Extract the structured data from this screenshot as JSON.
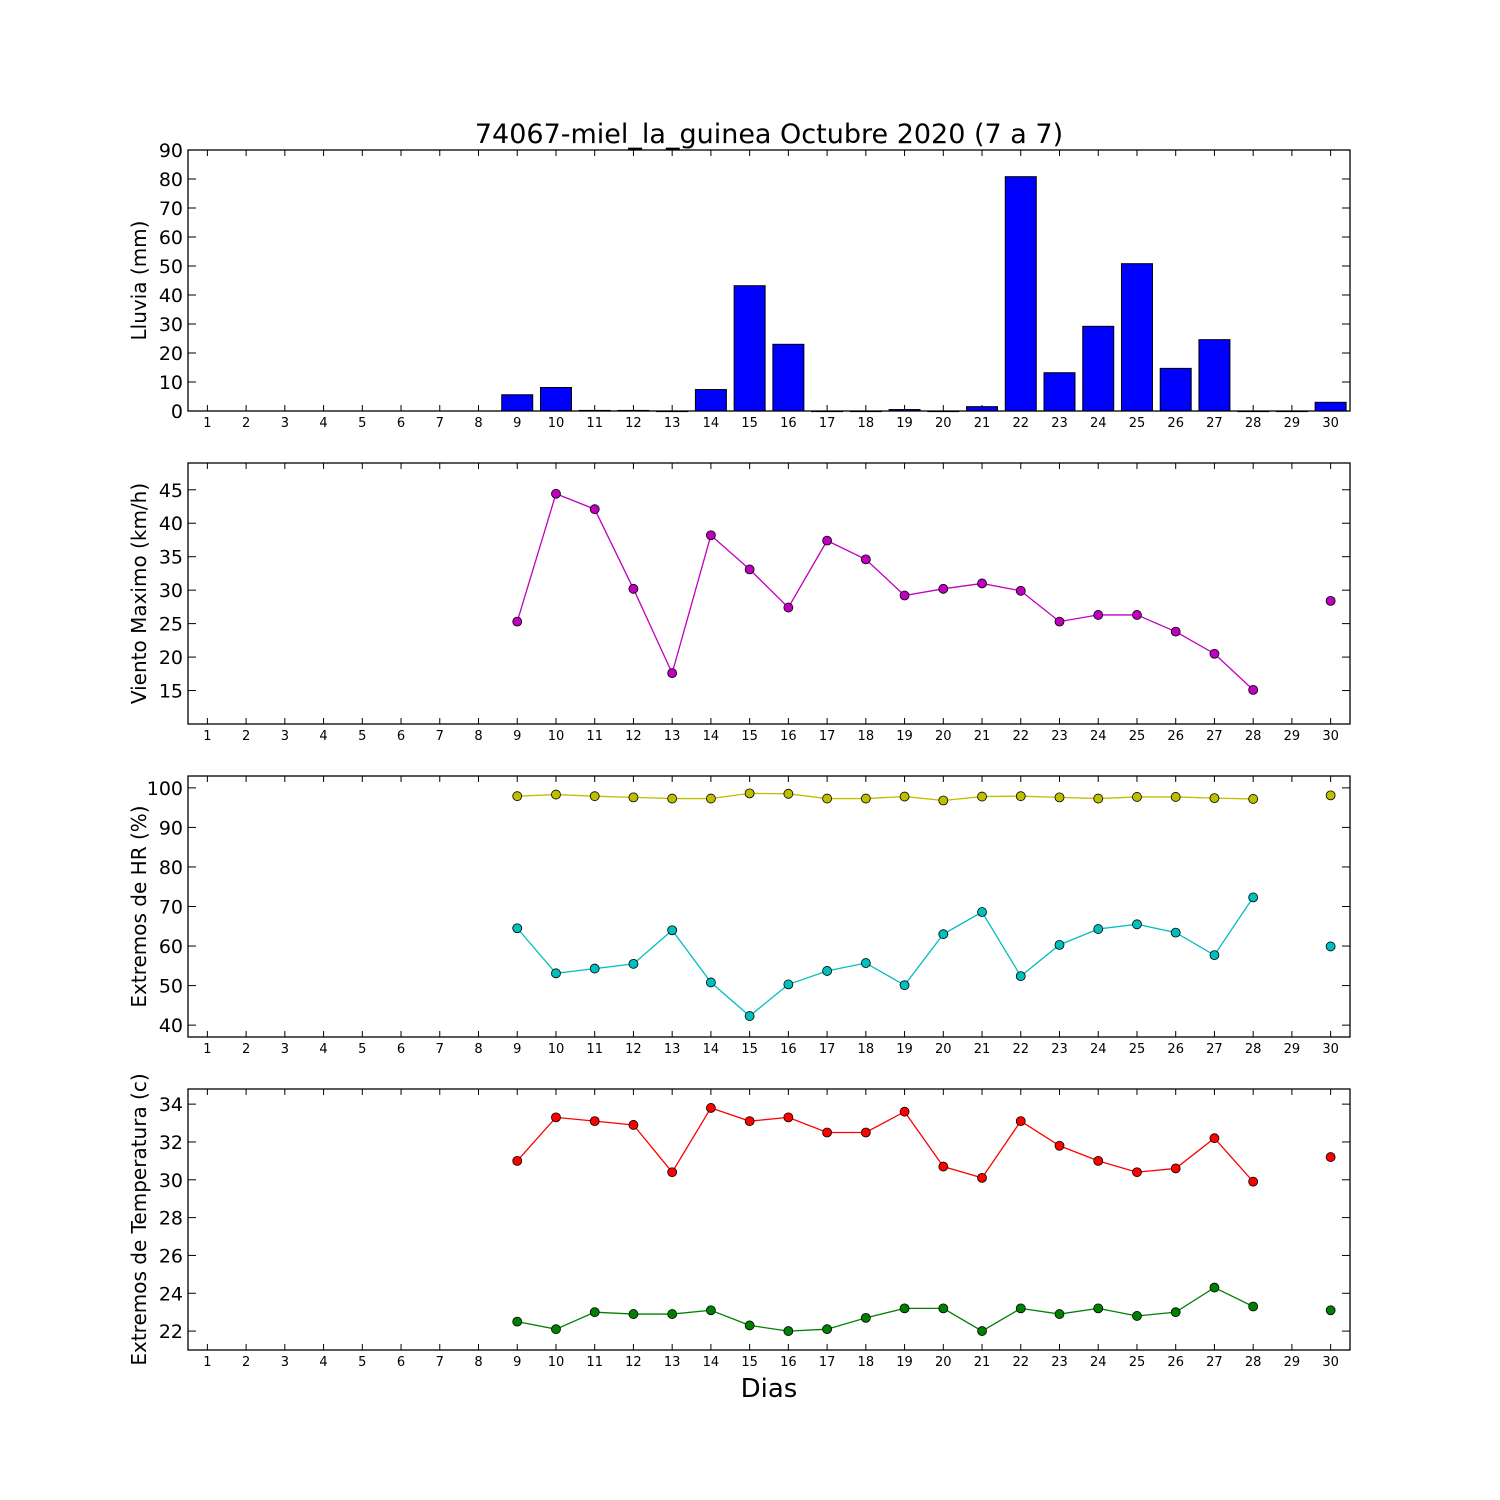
{
  "title": "74067-miel_la_guinea Octubre 2020  (7 a 7)",
  "xlabel": "Dias",
  "chart_data": [
    {
      "type": "bar",
      "ylabel": "Lluvia (mm)",
      "ylim": [
        0,
        90
      ],
      "yticks": [
        0,
        10,
        20,
        30,
        40,
        50,
        60,
        70,
        80,
        90
      ],
      "x": [
        1,
        2,
        3,
        4,
        5,
        6,
        7,
        8,
        9,
        10,
        11,
        12,
        13,
        14,
        15,
        16,
        17,
        18,
        19,
        20,
        21,
        22,
        23,
        24,
        25,
        26,
        27,
        28,
        29,
        30
      ],
      "series": [
        {
          "color": "#0000ff",
          "values": [
            null,
            null,
            null,
            null,
            null,
            null,
            null,
            null,
            5.6,
            8.1,
            0.2,
            0.2,
            0,
            7.4,
            43.2,
            23.0,
            0,
            0,
            0.5,
            0,
            1.5,
            80.8,
            13.2,
            29.2,
            50.8,
            14.7,
            24.6,
            0,
            0,
            3.0
          ]
        }
      ]
    },
    {
      "type": "line",
      "ylabel": "Viento Maximo (km/h)",
      "ylim": [
        10,
        49
      ],
      "yticks": [
        15,
        20,
        25,
        30,
        35,
        40,
        45
      ],
      "x": [
        1,
        2,
        3,
        4,
        5,
        6,
        7,
        8,
        9,
        10,
        11,
        12,
        13,
        14,
        15,
        16,
        17,
        18,
        19,
        20,
        21,
        22,
        23,
        24,
        25,
        26,
        27,
        28,
        29,
        30
      ],
      "series": [
        {
          "color": "#bf00bf",
          "values": [
            null,
            null,
            null,
            null,
            null,
            null,
            null,
            null,
            25.3,
            44.4,
            42.1,
            30.2,
            17.6,
            38.2,
            33.1,
            27.4,
            37.4,
            34.6,
            29.2,
            30.2,
            31.0,
            29.9,
            25.3,
            26.3,
            26.3,
            23.8,
            20.5,
            15.1,
            null,
            28.4
          ]
        }
      ]
    },
    {
      "type": "line",
      "ylabel": "Extremos de HR (%)",
      "ylim": [
        37,
        103
      ],
      "yticks": [
        40,
        50,
        60,
        70,
        80,
        90,
        100
      ],
      "x": [
        1,
        2,
        3,
        4,
        5,
        6,
        7,
        8,
        9,
        10,
        11,
        12,
        13,
        14,
        15,
        16,
        17,
        18,
        19,
        20,
        21,
        22,
        23,
        24,
        25,
        26,
        27,
        28,
        29,
        30
      ],
      "series": [
        {
          "color": "#bfbf00",
          "values": [
            null,
            null,
            null,
            null,
            null,
            null,
            null,
            null,
            97.9,
            98.3,
            97.9,
            97.6,
            97.3,
            97.3,
            98.6,
            98.5,
            97.3,
            97.3,
            97.8,
            96.8,
            97.8,
            97.9,
            97.6,
            97.3,
            97.7,
            97.7,
            97.4,
            97.2,
            null,
            98.1
          ]
        },
        {
          "color": "#00bfbf",
          "values": [
            null,
            null,
            null,
            null,
            null,
            null,
            null,
            null,
            64.5,
            53.1,
            54.3,
            55.5,
            64.0,
            50.8,
            42.3,
            50.3,
            53.7,
            55.7,
            50.1,
            63.0,
            68.6,
            52.4,
            60.3,
            64.3,
            65.5,
            63.4,
            57.7,
            72.3,
            null,
            59.9
          ]
        }
      ]
    },
    {
      "type": "line",
      "ylabel": "Extremos de Temperatura (c)",
      "ylim": [
        21,
        34.8
      ],
      "yticks": [
        22,
        24,
        26,
        28,
        30,
        32,
        34
      ],
      "x": [
        1,
        2,
        3,
        4,
        5,
        6,
        7,
        8,
        9,
        10,
        11,
        12,
        13,
        14,
        15,
        16,
        17,
        18,
        19,
        20,
        21,
        22,
        23,
        24,
        25,
        26,
        27,
        28,
        29,
        30
      ],
      "series": [
        {
          "color": "#ff0000",
          "values": [
            null,
            null,
            null,
            null,
            null,
            null,
            null,
            null,
            31.0,
            33.3,
            33.1,
            32.9,
            30.4,
            33.8,
            33.1,
            33.3,
            32.5,
            32.5,
            33.6,
            30.7,
            30.1,
            33.1,
            31.8,
            31.0,
            30.4,
            30.6,
            32.2,
            29.9,
            null,
            31.2
          ]
        },
        {
          "color": "#008000",
          "values": [
            null,
            null,
            null,
            null,
            null,
            null,
            null,
            null,
            22.5,
            22.1,
            23.0,
            22.9,
            22.9,
            23.1,
            22.3,
            22.0,
            22.1,
            22.7,
            23.2,
            23.2,
            22.0,
            23.2,
            22.9,
            23.2,
            22.8,
            23.0,
            24.3,
            23.3,
            null,
            23.1
          ]
        }
      ]
    }
  ]
}
